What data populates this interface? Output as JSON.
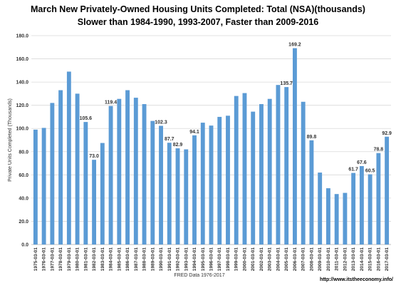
{
  "chart_data": {
    "type": "bar",
    "title": "March New Privately-Owned Housing Units Completed: Total (NSA)(thousands)",
    "subtitle": "Slower than 1984-1990, 1993-2007, Faster than 2009-2016",
    "ylabel": "Private Units Completed (Thousands)",
    "xlabel": "FRED Data 1976-2017",
    "ylim": [
      0,
      180
    ],
    "yticks": [
      "0.0",
      "20.0",
      "40.0",
      "60.0",
      "80.0",
      "100.0",
      "120.0",
      "140.0",
      "160.0",
      "180.0"
    ],
    "grid": true,
    "bar_color": "#5b9bd5",
    "categories": [
      "1975-03-01",
      "1976-03-01",
      "1977-03-01",
      "1978-03-01",
      "1979-03-01",
      "1980-03-01",
      "1981-03-01",
      "1982-03-01",
      "1983-03-01",
      "1984-03-01",
      "1985-03-01",
      "1986-03-01",
      "1987-03-01",
      "1988-03-01",
      "1989-03-01",
      "1990-03-01",
      "1991-03-01",
      "1992-03-01",
      "1993-03-01",
      "1994-03-01",
      "1995-03-01",
      "1996-03-01",
      "1997-03-01",
      "1998-03-01",
      "1999-03-01",
      "2000-03-01",
      "2001-03-01",
      "2002-03-01",
      "2003-03-01",
      "2004-03-01",
      "2005-03-01",
      "2006-03-01",
      "2007-03-01",
      "2008-03-01",
      "2009-03-01",
      "2010-03-01",
      "2011-03-01",
      "2012-03-01",
      "2013-03-01",
      "2014-03-01",
      "2015-03-01",
      "2016-03-01",
      "2017-03-01"
    ],
    "values": [
      99.0,
      100.5,
      122.0,
      133.0,
      149.0,
      130.0,
      105.6,
      73.0,
      87.5,
      119.4,
      125.5,
      133.0,
      126.5,
      121.0,
      106.5,
      102.3,
      87.7,
      82.9,
      82.0,
      94.1,
      105.0,
      102.5,
      110.0,
      111.0,
      128.0,
      130.5,
      114.5,
      121.0,
      125.5,
      137.5,
      135.7,
      169.2,
      123.0,
      89.8,
      62.0,
      48.5,
      43.5,
      44.5,
      61.7,
      67.6,
      60.5,
      78.8,
      92.9
    ],
    "data_labels": {
      "6": "105.6",
      "7": "73.0",
      "9": "119.4",
      "15": "102.3",
      "16": "87.7",
      "17": "82.9",
      "19": "94.1",
      "30": "135.7",
      "31": "169.2",
      "33": "89.8",
      "38": "61.7",
      "39": "67.6",
      "40": "60.5",
      "41": "78.8",
      "42": "92.9"
    }
  },
  "footer": {
    "source": "FRED Data 1976-2017",
    "site": "http://www.itstheeconomy.info/"
  }
}
